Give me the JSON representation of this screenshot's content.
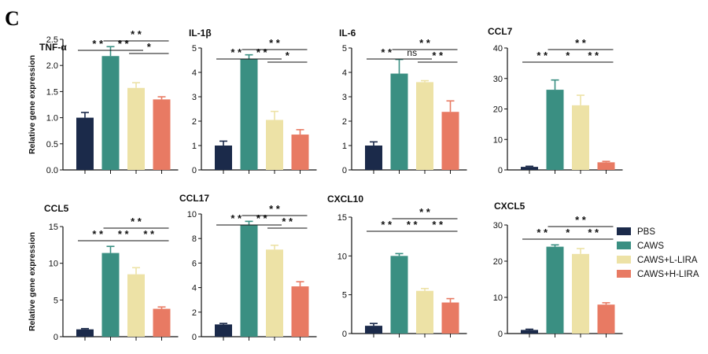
{
  "panel_label": "C",
  "y_label": "Relative gene expression",
  "groups": [
    "PBS",
    "CAWS",
    "CAWS+L-LIRA",
    "CAWS+H-LIRA"
  ],
  "colors": [
    "#1b2a4a",
    "#3a8f82",
    "#ede2a6",
    "#e87a63"
  ],
  "chart_data": [
    {
      "type": "bar",
      "title": "TNF-α",
      "categories": [
        "PBS",
        "CAWS",
        "CAWS+L-LIRA",
        "CAWS+H-LIRA"
      ],
      "values": [
        1.0,
        2.18,
        1.57,
        1.35
      ],
      "errors": [
        0.1,
        0.18,
        0.1,
        0.05
      ],
      "ylim": [
        0,
        2.5
      ],
      "yticks": [
        0.0,
        0.5,
        1.0,
        1.5,
        2.0,
        2.5
      ],
      "ytick_labels": [
        "0.0",
        "0.5",
        "1.0",
        "1.5",
        "2.0",
        "2.5"
      ],
      "ylabel": "Relative gene expression",
      "significance": [
        {
          "from": 0,
          "to": 1,
          "label": "**",
          "level": 0
        },
        {
          "from": 1,
          "to": 2,
          "label": "**",
          "level": 0
        },
        {
          "from": 2,
          "to": 3,
          "label": "*",
          "level": 0
        },
        {
          "from": 1,
          "to": 3,
          "label": "**",
          "level": 1
        }
      ]
    },
    {
      "type": "bar",
      "title": "IL-1β",
      "categories": [
        "PBS",
        "CAWS",
        "CAWS+L-LIRA",
        "CAWS+H-LIRA"
      ],
      "values": [
        1.0,
        4.55,
        2.05,
        1.45
      ],
      "errors": [
        0.18,
        0.17,
        0.35,
        0.2
      ],
      "ylim": [
        0,
        5
      ],
      "yticks": [
        0,
        1,
        2,
        3,
        4,
        5
      ],
      "ytick_labels": [
        "0",
        "1",
        "2",
        "3",
        "4",
        "5"
      ],
      "ylabel": "",
      "significance": [
        {
          "from": 0,
          "to": 1,
          "label": "**",
          "level": 0
        },
        {
          "from": 1,
          "to": 2,
          "label": "**",
          "level": 0
        },
        {
          "from": 2,
          "to": 3,
          "label": "*",
          "level": 0
        },
        {
          "from": 1,
          "to": 3,
          "label": "**",
          "level": 1
        }
      ]
    },
    {
      "type": "bar",
      "title": "IL-6",
      "categories": [
        "PBS",
        "CAWS",
        "CAWS+L-LIRA",
        "CAWS+H-LIRA"
      ],
      "values": [
        1.0,
        3.95,
        3.6,
        2.38
      ],
      "errors": [
        0.15,
        0.58,
        0.06,
        0.45
      ],
      "ylim": [
        0,
        5
      ],
      "yticks": [
        0,
        1,
        2,
        3,
        4,
        5
      ],
      "ytick_labels": [
        "0",
        "1",
        "2",
        "3",
        "4",
        "5"
      ],
      "ylabel": "",
      "significance": [
        {
          "from": 0,
          "to": 1,
          "label": "**",
          "level": 0
        },
        {
          "from": 1,
          "to": 2,
          "label": "ns",
          "level": 0
        },
        {
          "from": 2,
          "to": 3,
          "label": "**",
          "level": 0
        },
        {
          "from": 1,
          "to": 3,
          "label": "**",
          "level": 1
        }
      ]
    },
    {
      "type": "bar",
      "title": "CCL7",
      "categories": [
        "PBS",
        "CAWS",
        "CAWS+L-LIRA",
        "CAWS+H-LIRA"
      ],
      "values": [
        1.0,
        26.3,
        21.2,
        2.5
      ],
      "errors": [
        0.2,
        3.2,
        3.3,
        0.3
      ],
      "ylim": [
        0,
        40
      ],
      "yticks": [
        0,
        10,
        20,
        30,
        40
      ],
      "ytick_labels": [
        "0",
        "10",
        "20",
        "30",
        "40"
      ],
      "ylabel": "",
      "significance": [
        {
          "from": 0,
          "to": 1,
          "label": "**",
          "level": 0
        },
        {
          "from": 1,
          "to": 2,
          "label": "*",
          "level": 0
        },
        {
          "from": 2,
          "to": 3,
          "label": "**",
          "level": 0
        },
        {
          "from": 1,
          "to": 3,
          "label": "**",
          "level": 1
        }
      ]
    },
    {
      "type": "bar",
      "title": "CCL5",
      "categories": [
        "PBS",
        "CAWS",
        "CAWS+L-LIRA",
        "CAWS+H-LIRA"
      ],
      "values": [
        1.0,
        11.4,
        8.5,
        3.8
      ],
      "errors": [
        0.1,
        0.9,
        0.9,
        0.25
      ],
      "ylim": [
        0,
        15
      ],
      "yticks": [
        0,
        5,
        10,
        15
      ],
      "ytick_labels": [
        "0",
        "5",
        "10",
        "15"
      ],
      "ylabel": "Relative gene expression",
      "significance": [
        {
          "from": 0,
          "to": 1,
          "label": "**",
          "level": 0
        },
        {
          "from": 1,
          "to": 2,
          "label": "**",
          "level": 0
        },
        {
          "from": 2,
          "to": 3,
          "label": "**",
          "level": 0
        },
        {
          "from": 1,
          "to": 3,
          "label": "**",
          "level": 1
        }
      ]
    },
    {
      "type": "bar",
      "title": "CCL17",
      "categories": [
        "PBS",
        "CAWS",
        "CAWS+L-LIRA",
        "CAWS+H-LIRA"
      ],
      "values": [
        1.0,
        9.1,
        7.1,
        4.1
      ],
      "errors": [
        0.08,
        0.3,
        0.35,
        0.38
      ],
      "ylim": [
        0,
        10
      ],
      "yticks": [
        0,
        2,
        4,
        6,
        8,
        10
      ],
      "ytick_labels": [
        "0",
        "2",
        "4",
        "6",
        "8",
        "10"
      ],
      "ylabel": "",
      "significance": [
        {
          "from": 0,
          "to": 1,
          "label": "**",
          "level": 0
        },
        {
          "from": 1,
          "to": 2,
          "label": "**",
          "level": 0
        },
        {
          "from": 2,
          "to": 3,
          "label": "**",
          "level": 0
        },
        {
          "from": 1,
          "to": 3,
          "label": "**",
          "level": 1
        }
      ]
    },
    {
      "type": "bar",
      "title": "CXCL10",
      "categories": [
        "PBS",
        "CAWS",
        "CAWS+L-LIRA",
        "CAWS+H-LIRA"
      ],
      "values": [
        1.0,
        10.0,
        5.5,
        4.0
      ],
      "errors": [
        0.3,
        0.3,
        0.3,
        0.5
      ],
      "ylim": [
        0,
        15
      ],
      "yticks": [
        0,
        5,
        10,
        15
      ],
      "ytick_labels": [
        "0",
        "5",
        "10",
        "15"
      ],
      "ylabel": "",
      "significance": [
        {
          "from": 0,
          "to": 1,
          "label": "**",
          "level": 0
        },
        {
          "from": 1,
          "to": 2,
          "label": "**",
          "level": 0
        },
        {
          "from": 2,
          "to": 3,
          "label": "**",
          "level": 0
        },
        {
          "from": 1,
          "to": 3,
          "label": "**",
          "level": 1
        }
      ]
    },
    {
      "type": "bar",
      "title": "CXCL5",
      "categories": [
        "PBS",
        "CAWS",
        "CAWS+L-LIRA",
        "CAWS+H-LIRA"
      ],
      "values": [
        1.0,
        24.0,
        22.0,
        8.0
      ],
      "errors": [
        0.2,
        0.5,
        1.5,
        0.5
      ],
      "ylim": [
        0,
        30
      ],
      "yticks": [
        0,
        10,
        20,
        30
      ],
      "ytick_labels": [
        "0",
        "10",
        "20",
        "30"
      ],
      "ylabel": "",
      "significance": [
        {
          "from": 0,
          "to": 1,
          "label": "**",
          "level": 0
        },
        {
          "from": 1,
          "to": 2,
          "label": "*",
          "level": 0
        },
        {
          "from": 2,
          "to": 3,
          "label": "**",
          "level": 0
        },
        {
          "from": 1,
          "to": 3,
          "label": "**",
          "level": 1
        }
      ]
    }
  ]
}
